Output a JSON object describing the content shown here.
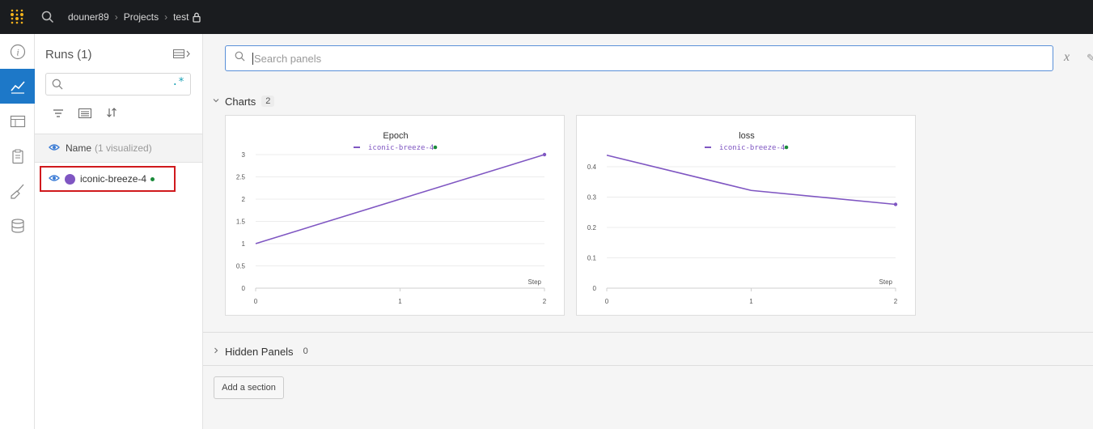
{
  "breadcrumb": {
    "user": "douner89",
    "projects": "Projects",
    "project": "test"
  },
  "colors": {
    "run": "#7f56c2",
    "accent": "#1d78c8",
    "live": "#1a8a3a"
  },
  "rail": [
    "info-icon",
    "chart-icon",
    "table-icon",
    "report-icon",
    "sweep-icon",
    "artifacts-icon"
  ],
  "runs": {
    "title": "Runs (1)",
    "search_regex_label": ".*",
    "header": {
      "name": "Name",
      "visualized": "(1 visualized)"
    },
    "items": [
      {
        "name": "iconic-breeze-4",
        "color": "#7f56c2",
        "visible": true
      }
    ]
  },
  "main": {
    "search_placeholder": "Search panels",
    "x_axis_label": "x",
    "sections": [
      {
        "label": "Charts",
        "count": "2"
      },
      {
        "label": "Hidden Panels",
        "count": "0"
      }
    ],
    "add_section_label": "Add a section"
  },
  "chart_data": [
    {
      "type": "line",
      "title": "Epoch",
      "xlabel": "Step",
      "x": [
        0,
        1,
        2
      ],
      "x_ticks": [
        "0",
        "1",
        "2"
      ],
      "y_ticks": [
        "0",
        "0.5",
        "1",
        "1.5",
        "2",
        "2.5",
        "3"
      ],
      "ylim": [
        0,
        3
      ],
      "xlim": [
        0,
        2
      ],
      "series": [
        {
          "name": "iconic-breeze-4",
          "values": [
            1,
            2,
            3
          ]
        }
      ]
    },
    {
      "type": "line",
      "title": "loss",
      "xlabel": "Step",
      "x": [
        0,
        1,
        2
      ],
      "x_ticks": [
        "0",
        "1",
        "2"
      ],
      "y_ticks": [
        "0",
        "0.1",
        "0.2",
        "0.3",
        "0.4"
      ],
      "ylim": [
        0,
        0.44
      ],
      "xlim": [
        0,
        2
      ],
      "series": [
        {
          "name": "iconic-breeze-4",
          "values": [
            0.438,
            0.322,
            0.276
          ]
        }
      ]
    }
  ]
}
